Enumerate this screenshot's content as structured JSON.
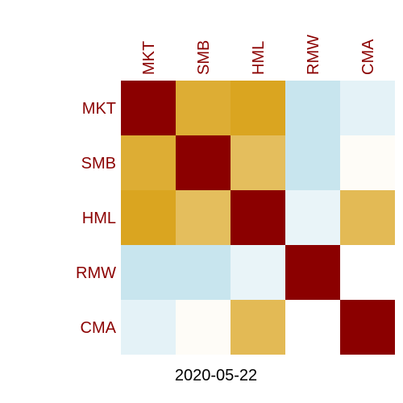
{
  "chart_data": {
    "type": "heatmap",
    "title": "",
    "xlabel": "2020-05-22",
    "ylabel": "",
    "row_labels": [
      "MKT",
      "SMB",
      "HML",
      "RMW",
      "CMA"
    ],
    "column_labels": [
      "MKT",
      "SMB",
      "HML",
      "RMW",
      "CMA"
    ],
    "values": [
      [
        1.0,
        0.5,
        0.55,
        -0.22,
        -0.11
      ],
      [
        0.5,
        1.0,
        0.4,
        -0.22,
        0.02
      ],
      [
        0.55,
        0.4,
        1.0,
        -0.09,
        0.42
      ],
      [
        -0.22,
        -0.22,
        -0.09,
        1.0,
        0.0
      ],
      [
        -0.11,
        0.02,
        0.42,
        0.0,
        1.0
      ]
    ],
    "color_scale": {
      "diagonal": "#8b0000",
      "positive": "#daa520",
      "negative": "#add8e6",
      "neutral": "#ffffff"
    },
    "label_color": "#8b0000",
    "axis_label_color": "#000000",
    "grid": false,
    "legend": "none"
  }
}
